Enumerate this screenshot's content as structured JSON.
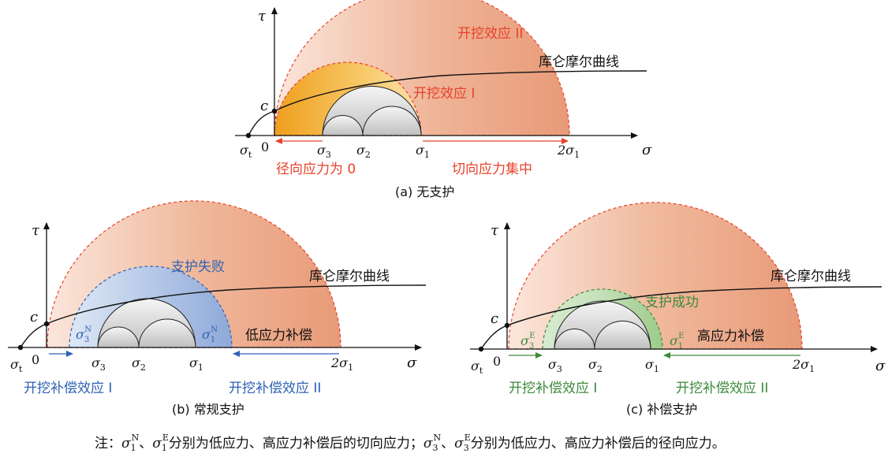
{
  "colors": {
    "red": "#e8412a",
    "blue": "#2f62b3",
    "green": "#3d8a3a",
    "fill_orange": "#e9a27f",
    "fill_yellow": "#f0b030",
    "fill_blue": "#9fb7de",
    "fill_green": "#a8cf9c",
    "gray": "#d9d9d9"
  },
  "diagram_a": {
    "caption": "(a) 无支护",
    "y_axis": "τ",
    "x_axis": "σ",
    "c_label": "c",
    "sigma_t": "σ",
    "sigma_t_sub": "t",
    "zero": "0",
    "s3": "σ",
    "s3_sub": "3",
    "s2": "σ",
    "s2_sub": "2",
    "s1": "σ",
    "s1_sub": "1",
    "two_s1_prefix": "2σ",
    "two_s1_sub": "1",
    "effect_II": "开挖效应 II",
    "effect_I": "开挖效应 I",
    "coulomb_mohr": "库仑摩尔曲线",
    "radial": "径向应力为 0",
    "tangential": "切向应力集中"
  },
  "diagram_b": {
    "caption": "(b) 常规支护",
    "y_axis": "τ",
    "x_axis": "σ",
    "c_label": "c",
    "sigma_t": "σ",
    "sigma_t_sub": "t",
    "zero": "0",
    "s3": "σ",
    "s3_sub": "3",
    "s2": "σ",
    "s2_sub": "2",
    "s1": "σ",
    "s1_sub": "1",
    "two_s1_prefix": "2σ",
    "two_s1_sub": "1",
    "s3N": "σ",
    "s3N_sub": "3",
    "s3N_sup": "N",
    "s1N": "σ",
    "s1N_sub": "1",
    "s1N_sup": "N",
    "failure": "支护失败",
    "coulomb_mohr": "库仑摩尔曲线",
    "low_comp": "低应力补偿",
    "comp_I": "开挖补偿效应 I",
    "comp_II": "开挖补偿效应 II"
  },
  "diagram_c": {
    "caption": "(c) 补偿支护",
    "y_axis": "τ",
    "x_axis": "σ",
    "c_label": "c",
    "sigma_t": "σ",
    "sigma_t_sub": "t",
    "zero": "0",
    "s3": "σ",
    "s3_sub": "3",
    "s2": "σ",
    "s2_sub": "2",
    "s1": "σ",
    "s1_sub": "1",
    "two_s1_prefix": "2σ",
    "two_s1_sub": "1",
    "s3E": "σ",
    "s3E_sub": "3",
    "s3E_sup": "E",
    "s1E": "σ",
    "s1E_sub": "1",
    "s1E_sup": "E",
    "success": "支护成功",
    "coulomb_mohr": "库仑摩尔曲线",
    "high_comp": "高应力补偿",
    "comp_I": "开挖补偿效应 I",
    "comp_II": "开挖补偿效应 II"
  },
  "note": {
    "prefix": "注：",
    "s1N": "σ",
    "s1N_sub": "1",
    "s1N_sup": "N",
    "sep1": "、",
    "s1E": "σ",
    "s1E_sub": "1",
    "s1E_sup": "E",
    "text1": "分别为低应力、高应力补偿后的切向应力；",
    "s3N": "σ",
    "s3N_sub": "3",
    "s3N_sup": "N",
    "sep2": "、",
    "s3E": "σ",
    "s3E_sub": "3",
    "s3E_sup": "E",
    "text2": "分别为低应力、高应力补偿后的径向应力。"
  }
}
